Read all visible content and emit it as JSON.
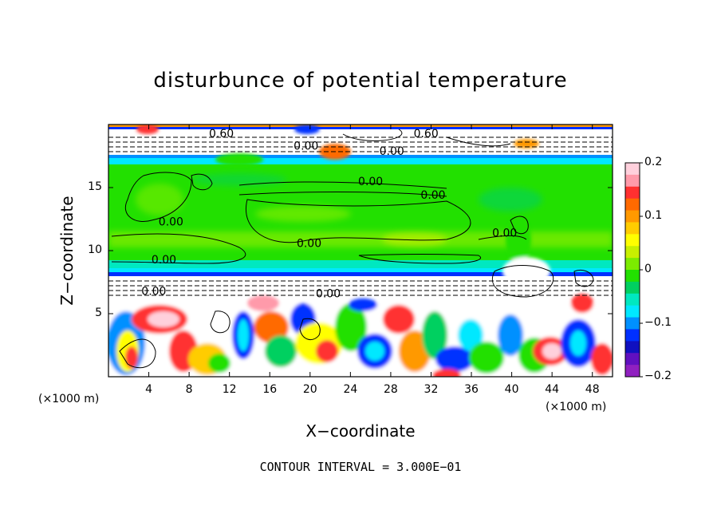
{
  "chart_data": {
    "type": "heatmap",
    "title": "disturbunce of potential temperature",
    "xlabel": "X−coordinate",
    "ylabel": "Z−coordinate",
    "x_unit": "(×1000 m)",
    "z_unit": "(×1000 m)",
    "xlim": [
      0,
      50
    ],
    "ylim": [
      0,
      20
    ],
    "x_ticks": [
      4,
      8,
      12,
      16,
      20,
      24,
      28,
      32,
      36,
      40,
      44,
      48
    ],
    "y_ticks": [
      5,
      10,
      15
    ],
    "colorbar": {
      "range": [
        -0.2,
        0.2
      ],
      "ticks": [
        "0.2",
        "0.1",
        "0",
        "−0.1",
        "−0.2"
      ],
      "tick_values": [
        0.2,
        0.1,
        0,
        -0.1,
        -0.2
      ],
      "colors": [
        "#ffd0dc",
        "#ff9aaa",
        "#ff3030",
        "#ff6a00",
        "#ff9900",
        "#ffcc00",
        "#ffff00",
        "#c8f000",
        "#7cec00",
        "#22e000",
        "#00d060",
        "#00e8c0",
        "#00e8ff",
        "#0090ff",
        "#0030ff",
        "#1010c0",
        "#6010c0",
        "#9020c0"
      ]
    },
    "contour_labels": [
      {
        "text": "0.00",
        "x": 19.6,
        "z": 18.0
      },
      {
        "text": "0.00",
        "x": 28.1,
        "z": 17.6
      },
      {
        "text": "0.60",
        "x": 11.2,
        "z": 19.0
      },
      {
        "text": "0.60",
        "x": 31.5,
        "z": 19.0
      },
      {
        "text": "0.00",
        "x": 26.0,
        "z": 15.2
      },
      {
        "text": "0.00",
        "x": 32.2,
        "z": 14.1
      },
      {
        "text": "0.00",
        "x": 6.2,
        "z": 12.0
      },
      {
        "text": "0.00",
        "x": 39.3,
        "z": 11.1
      },
      {
        "text": "0.00",
        "x": 19.9,
        "z": 10.3
      },
      {
        "text": "0.00",
        "x": 5.5,
        "z": 9.0
      },
      {
        "text": "0.00",
        "x": 21.8,
        "z": 6.3
      },
      {
        "text": "0.00",
        "x": 4.5,
        "z": 6.5
      }
    ]
  },
  "footer": {
    "contour_interval": "CONTOUR INTERVAL = 3.000E−01"
  }
}
